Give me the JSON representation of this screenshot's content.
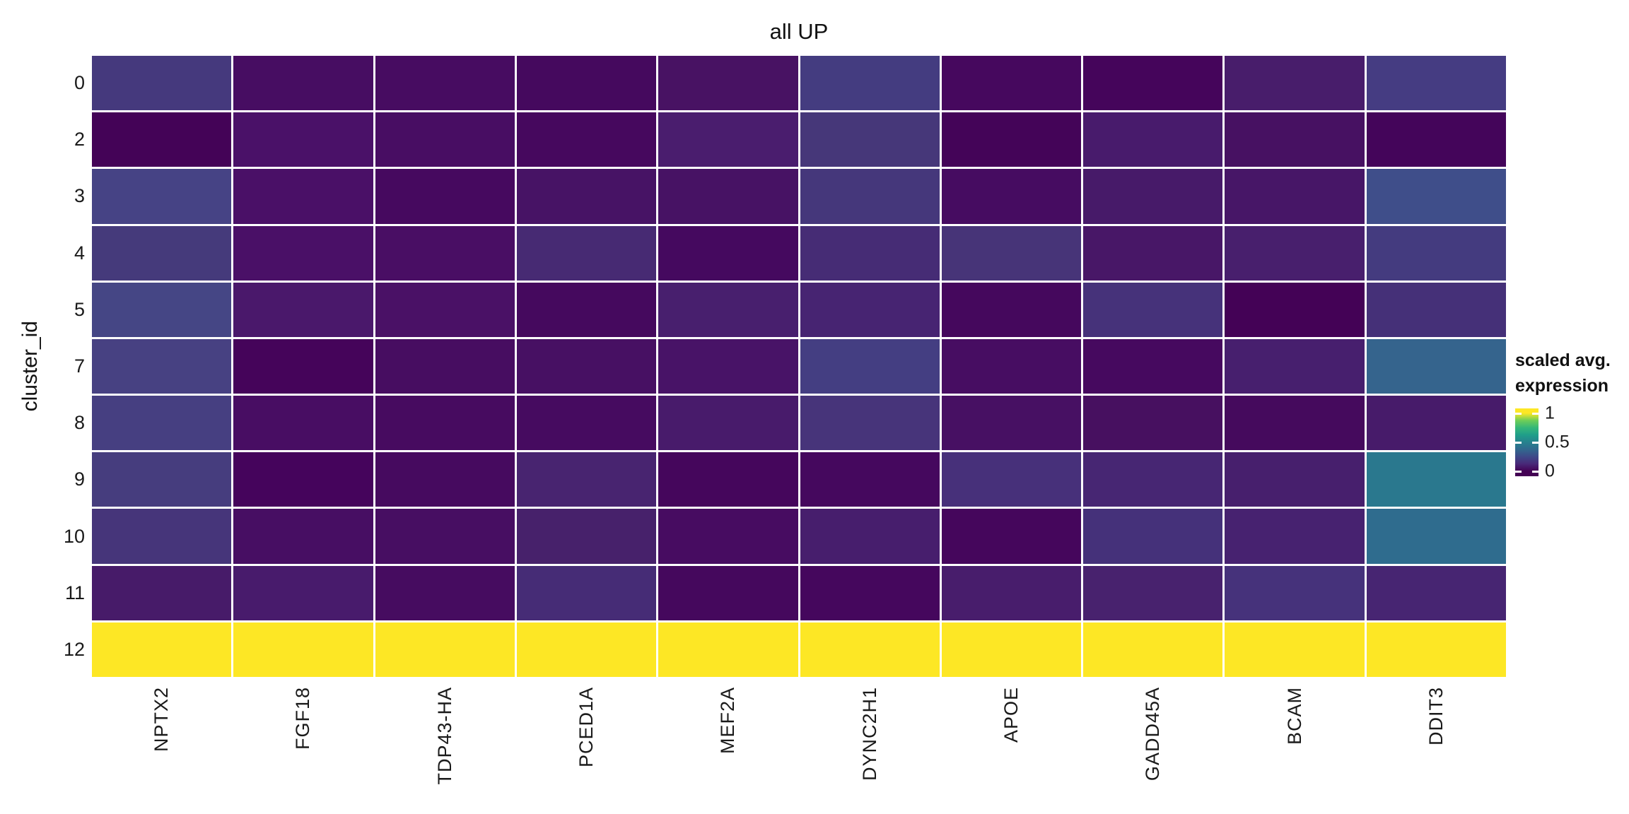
{
  "title": "all UP",
  "y_axis_title": "cluster_id",
  "legend": {
    "title_line1": "scaled avg.",
    "title_line2": "expression",
    "tick_labels": [
      "1",
      "0.5",
      "0"
    ],
    "gradient_top_to_bottom": [
      "#fde725",
      "#6ece58",
      "#35b779",
      "#1f9e89",
      "#26828e",
      "#31688e",
      "#3e4989",
      "#482878",
      "#440154"
    ]
  },
  "chart_data": {
    "type": "heatmap",
    "title": "all UP",
    "xlabel": "",
    "ylabel": "cluster_id",
    "legend_title": "scaled avg. expression",
    "colorscale": "viridis",
    "color_range": [
      0,
      1
    ],
    "legend_ticks": [
      1,
      0.5,
      0
    ],
    "grid": false,
    "legend_position": "right",
    "x_categories": [
      "NPTX2",
      "FGF18",
      "TDP43-HA",
      "PCED1A",
      "MEF2A",
      "DYNC2H1",
      "APOE",
      "GADD45A",
      "BCAM",
      "DDIT3"
    ],
    "y_categories": [
      "0",
      "2",
      "3",
      "4",
      "5",
      "7",
      "8",
      "9",
      "10",
      "11",
      "12"
    ],
    "values": [
      [
        0.18,
        0.05,
        0.05,
        0.03,
        0.06,
        0.19,
        0.03,
        0.02,
        0.09,
        0.19
      ],
      [
        0.01,
        0.06,
        0.05,
        0.03,
        0.09,
        0.17,
        0.01,
        0.08,
        0.05,
        0.02
      ],
      [
        0.22,
        0.06,
        0.04,
        0.06,
        0.06,
        0.17,
        0.05,
        0.08,
        0.07,
        0.26
      ],
      [
        0.18,
        0.06,
        0.05,
        0.13,
        0.04,
        0.13,
        0.16,
        0.07,
        0.1,
        0.19
      ],
      [
        0.23,
        0.08,
        0.06,
        0.04,
        0.1,
        0.11,
        0.03,
        0.15,
        0.01,
        0.14
      ],
      [
        0.21,
        0.02,
        0.05,
        0.05,
        0.06,
        0.2,
        0.05,
        0.04,
        0.1,
        0.33
      ],
      [
        0.2,
        0.05,
        0.04,
        0.04,
        0.08,
        0.16,
        0.05,
        0.05,
        0.04,
        0.08
      ],
      [
        0.19,
        0.02,
        0.04,
        0.11,
        0.03,
        0.03,
        0.15,
        0.12,
        0.1,
        0.42
      ],
      [
        0.16,
        0.05,
        0.05,
        0.1,
        0.05,
        0.09,
        0.03,
        0.15,
        0.11,
        0.37
      ],
      [
        0.08,
        0.08,
        0.05,
        0.13,
        0.03,
        0.03,
        0.09,
        0.1,
        0.15,
        0.12
      ],
      [
        1,
        1,
        1,
        1,
        1,
        1,
        1,
        1,
        1,
        1
      ]
    ],
    "cell_colors": [
      [
        "#45397d",
        "#470d62",
        "#470c61",
        "#45095e",
        "#481263",
        "#443c80",
        "#46085e",
        "#45055b",
        "#481d6b",
        "#453c82"
      ],
      [
        "#440357",
        "#4a1168",
        "#480d63",
        "#46085e",
        "#4a1d6e",
        "#463779",
        "#440458",
        "#481b6c",
        "#471162",
        "#44055a"
      ],
      [
        "#464385",
        "#4a1067",
        "#46095f",
        "#471365",
        "#471264",
        "#45377b",
        "#460c61",
        "#471a69",
        "#471667",
        "#3f4e8a"
      ],
      [
        "#453a7b",
        "#4a1067",
        "#490e64",
        "#472a73",
        "#45095f",
        "#462c75",
        "#473478",
        "#481767",
        "#481f6d",
        "#443b7f"
      ],
      [
        "#454685",
        "#4a186b",
        "#4a1166",
        "#45095e",
        "#481f6e",
        "#472472",
        "#45085d",
        "#46327a",
        "#440256",
        "#453078"
      ],
      [
        "#474182",
        "#45045a",
        "#470d61",
        "#471063",
        "#481367",
        "#443e82",
        "#470d62",
        "#46095f",
        "#471f6e",
        "#35648d"
      ],
      [
        "#463f81",
        "#480d63",
        "#470b60",
        "#460b60",
        "#481b6b",
        "#47347a",
        "#471063",
        "#471060",
        "#450a5d",
        "#471b6a"
      ],
      [
        "#463d7e",
        "#45045c",
        "#460a5f",
        "#482470",
        "#45065c",
        "#45085e",
        "#47307a",
        "#472673",
        "#471f6d",
        "#2a788e"
      ],
      [
        "#46357a",
        "#470e63",
        "#470e62",
        "#47216b",
        "#470c61",
        "#471e6d",
        "#45065c",
        "#45317a",
        "#472270",
        "#2f6c8e"
      ],
      [
        "#471b69",
        "#481b6c",
        "#460c60",
        "#462c76",
        "#45085d",
        "#45075d",
        "#481d6c",
        "#48226e",
        "#46327b",
        "#472572"
      ],
      [
        "#fde725",
        "#fde725",
        "#fde725",
        "#fde725",
        "#fde725",
        "#fde725",
        "#fde725",
        "#fde725",
        "#fde725",
        "#fde725"
      ]
    ]
  }
}
